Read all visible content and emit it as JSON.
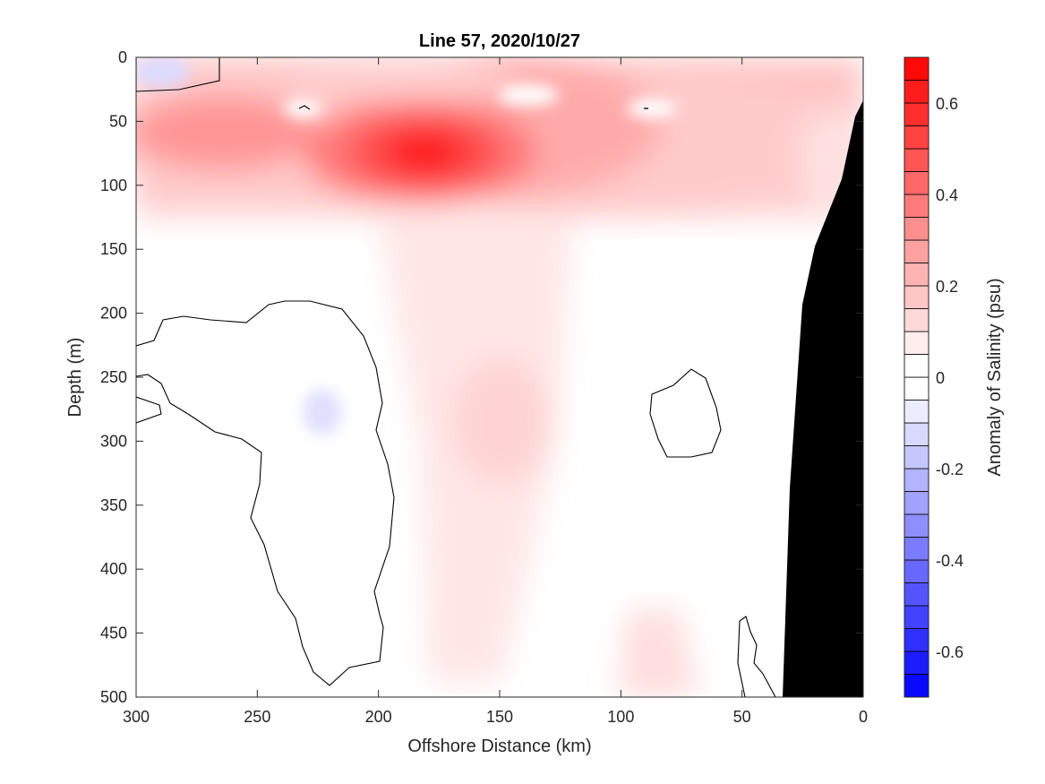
{
  "chart_data": {
    "type": "heatmap",
    "title": "Line 57, 2020/10/27",
    "xlabel": "Offshore Distance (km)",
    "ylabel": "Depth (m)",
    "colorbar_label": "Anomaly of Salinity (psu)",
    "xlim": [
      300,
      0
    ],
    "ylim": [
      0,
      500
    ],
    "x_reversed": true,
    "y_reversed": true,
    "x_ticks": [
      "300",
      "250",
      "200",
      "150",
      "100",
      "50",
      "0"
    ],
    "y_ticks": [
      "0",
      "50",
      "100",
      "150",
      "200",
      "250",
      "300",
      "350",
      "400",
      "450",
      "500"
    ],
    "colorbar_range": [
      -0.7,
      0.7
    ],
    "colorbar_step": 0.05,
    "colorbar_ticks": [
      "0.6",
      "0.4",
      "0.2",
      "0",
      "-0.2",
      "-0.4",
      "-0.6"
    ],
    "colors": {
      "positive": "#ff0000",
      "negative": "#0000ff",
      "neutral": "#ffffff",
      "land": "#000000"
    },
    "grid": false,
    "features": [
      {
        "name": "surface salty core",
        "x_km": 172,
        "depth_m": 75,
        "anomaly_psu": 0.7
      },
      {
        "name": "secondary salty core",
        "x_km": 255,
        "depth_m": 62,
        "anomaly_psu": 0.4
      },
      {
        "name": "fresh pocket near surface",
        "x_km": 288,
        "depth_m": 12,
        "anomaly_psu": -0.05
      },
      {
        "name": "fresh pocket at depth",
        "x_km": 230,
        "depth_m": 285,
        "anomaly_psu": -0.05
      },
      {
        "name": "salty tongue at depth",
        "x_km": 150,
        "depth_m": 330,
        "anomaly_psu": 0.1
      }
    ]
  }
}
